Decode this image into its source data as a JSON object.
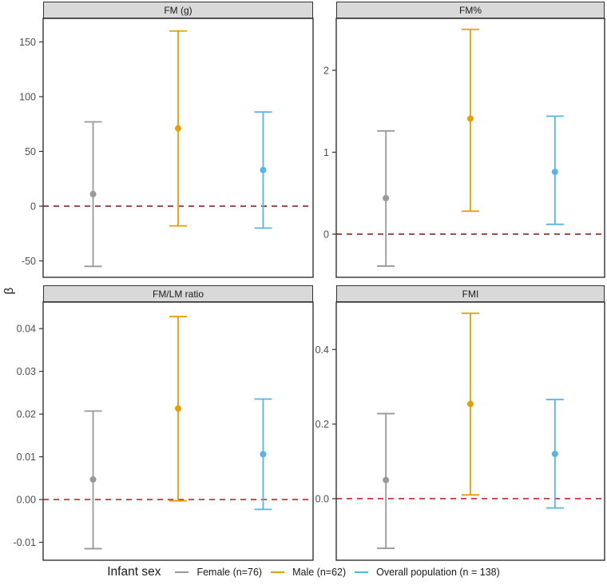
{
  "y_axis_title": "β",
  "legend": {
    "title": "Infant sex",
    "items": [
      {
        "label": "Female (n=76)",
        "color": "#999999"
      },
      {
        "label": "Male (n=62)",
        "color": "#E69F00"
      },
      {
        "label": "Overall population (n = 138)",
        "color": "#56B4E9"
      }
    ]
  },
  "chart_data": {
    "type": "pointrange",
    "title": "",
    "xlabel": "",
    "ylabel": "β",
    "grid": false,
    "legend_position": "bottom",
    "groups": [
      {
        "name": "Female (n=76)",
        "color": "#999999"
      },
      {
        "name": "Male (n=62)",
        "color": "#E69F00"
      },
      {
        "name": "Overall population (n = 138)",
        "color": "#56B4E9"
      }
    ],
    "facets": [
      {
        "title": "FM (g)",
        "ylim": [
          -65,
          171.5
        ],
        "ticks": [
          {
            "value": 150,
            "label": "150"
          },
          {
            "value": 100,
            "label": "100"
          },
          {
            "value": 50,
            "label": "50"
          },
          {
            "value": 0,
            "label": "0"
          },
          {
            "value": -50,
            "label": "-50"
          }
        ],
        "ref_line": {
          "y": 0,
          "style": "dashed",
          "color": "#8B2525"
        },
        "estimates": [
          {
            "group": "Female (n=76)",
            "mean": 11,
            "lo": -55,
            "hi": 77
          },
          {
            "group": "Male (n=62)",
            "mean": 71,
            "lo": -18,
            "hi": 160
          },
          {
            "group": "Overall population (n = 138)",
            "mean": 33,
            "lo": -20,
            "hi": 86
          }
        ]
      },
      {
        "title": "FM%",
        "ylim": [
          -0.527,
          2.634
        ],
        "ticks": [
          {
            "value": 2,
            "label": "2"
          },
          {
            "value": 1,
            "label": "1"
          },
          {
            "value": 0,
            "label": "0"
          }
        ],
        "ref_line": {
          "y": 0,
          "style": "dashed",
          "color": "#8B2525"
        },
        "estimates": [
          {
            "group": "Female (n=76)",
            "mean": 0.44,
            "lo": -0.39,
            "hi": 1.26
          },
          {
            "group": "Male (n=62)",
            "mean": 1.41,
            "lo": 0.28,
            "hi": 2.5
          },
          {
            "group": "Overall population (n = 138)",
            "mean": 0.76,
            "lo": 0.12,
            "hi": 1.44
          }
        ]
      },
      {
        "title": "FM/LM ratio",
        "ylim": [
          -0.0142,
          0.0462
        ],
        "ticks": [
          {
            "value": 0.04,
            "label": "0.04"
          },
          {
            "value": 0.03,
            "label": "0.03"
          },
          {
            "value": 0.02,
            "label": "0.02"
          },
          {
            "value": 0.01,
            "label": "0.01"
          },
          {
            "value": 0.0,
            "label": "0.00"
          },
          {
            "value": -0.01,
            "label": "-0.01"
          }
        ],
        "ref_line": {
          "y": 0,
          "style": "dashed",
          "color": "#CC2222"
        },
        "estimates": [
          {
            "group": "Female (n=76)",
            "mean": 0.0047,
            "lo": -0.0115,
            "hi": 0.0207
          },
          {
            "group": "Male (n=62)",
            "mean": 0.0213,
            "lo": -0.0003,
            "hi": 0.0428
          },
          {
            "group": "Overall population (n = 138)",
            "mean": 0.0106,
            "lo": -0.0023,
            "hi": 0.0235
          }
        ]
      },
      {
        "title": "FMI",
        "ylim": [
          -0.165,
          0.527
        ],
        "ticks": [
          {
            "value": 0.4,
            "label": "0.4"
          },
          {
            "value": 0.2,
            "label": "0.2"
          },
          {
            "value": 0.0,
            "label": "0.0"
          }
        ],
        "ref_line": {
          "y": 0,
          "style": "dashed",
          "color": "#CC2222"
        },
        "estimates": [
          {
            "group": "Female (n=76)",
            "mean": 0.05,
            "lo": -0.133,
            "hi": 0.228
          },
          {
            "group": "Male (n=62)",
            "mean": 0.254,
            "lo": 0.01,
            "hi": 0.497
          },
          {
            "group": "Overall population (n = 138)",
            "mean": 0.12,
            "lo": -0.025,
            "hi": 0.266
          }
        ]
      }
    ]
  }
}
